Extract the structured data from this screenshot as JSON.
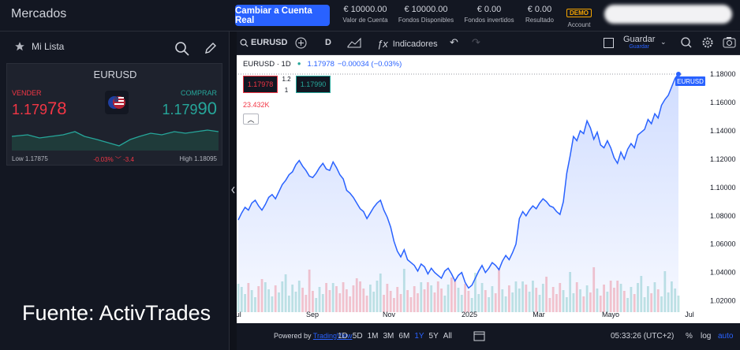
{
  "header": {
    "title": "Mercados",
    "cta_label": "Cambiar a Cuenta Real",
    "stats": [
      {
        "value": "€ 10000.00",
        "label": "Valor de Cuenta"
      },
      {
        "value": "€ 10000.00",
        "label": "Fondos Disponibles"
      },
      {
        "value": "€ 0.00",
        "label": "Fondos invertidos"
      },
      {
        "value": "€ 0.00",
        "label": "Resultado"
      }
    ],
    "account_badge": "DEMO",
    "account_label": "Account"
  },
  "sidebar": {
    "list_label": "Mi Lista",
    "card": {
      "symbol": "EURUSD",
      "sell_label": "VENDER",
      "sell_price_main": "1.179",
      "sell_price_big": "78",
      "buy_label": "COMPRAR",
      "buy_price_main": "1.179",
      "buy_price_big": "90",
      "low": "Low 1.17875",
      "change": "-0.03% ﹀ -3.4",
      "high": "High 1.18095"
    }
  },
  "chart_toolbar": {
    "symbol": "EURUSD",
    "interval": "D",
    "indicators_label": "Indicadores",
    "save_label": "Guardar",
    "save_sub": "Guardar"
  },
  "legend": {
    "title": "EURUSD · 1D",
    "price": "1.17978",
    "change": "−0.00034 (−0.03%)",
    "sell_box": "1.17978",
    "spread_top": "1.2",
    "spread_bottom": "1",
    "buy_box": "1.17990",
    "volume": "23.432K",
    "price_tag": "EURUSD"
  },
  "bottom_bar": {
    "powered": "Powered by",
    "powered_link": "TradingView",
    "ranges": [
      "1D",
      "5D",
      "1M",
      "3M",
      "6M",
      "1Y",
      "5Y",
      "All"
    ],
    "active_range": "1Y",
    "time": "05:33:26 (UTC+2)",
    "pct": "%",
    "log": "log",
    "auto": "auto"
  },
  "watermark": "Fuente: ActivTrades",
  "colors": {
    "accent": "#2962ff",
    "sell": "#f23645",
    "buy": "#26a69a",
    "line": "#2962ff"
  },
  "chart_data": {
    "type": "area",
    "title": "EURUSD · 1D",
    "x_ticks": [
      "Jul",
      "Sep",
      "Nov",
      "2025",
      "Mar",
      "Mayo",
      "Jul"
    ],
    "y_ticks": [
      1.02,
      1.04,
      1.06,
      1.08,
      1.1,
      1.12,
      1.14,
      1.16,
      1.18
    ],
    "ylim": [
      1.012,
      1.19
    ],
    "series": [
      {
        "values": [
          1.077,
          1.082,
          1.086,
          1.084,
          1.089,
          1.091,
          1.087,
          1.084,
          1.088,
          1.093,
          1.095,
          1.092,
          1.097,
          1.102,
          1.105,
          1.109,
          1.111,
          1.116,
          1.119,
          1.115,
          1.112,
          1.108,
          1.107,
          1.11,
          1.114,
          1.117,
          1.113,
          1.112,
          1.118,
          1.114,
          1.109,
          1.106,
          1.098,
          1.096,
          1.093,
          1.089,
          1.085,
          1.083,
          1.078,
          1.082,
          1.086,
          1.089,
          1.091,
          1.084,
          1.079,
          1.072,
          1.062,
          1.055,
          1.051,
          1.056,
          1.049,
          1.047,
          1.045,
          1.041,
          1.046,
          1.044,
          1.039,
          1.043,
          1.04,
          1.038,
          1.036,
          1.041,
          1.043,
          1.039,
          1.034,
          1.038,
          1.04,
          1.033,
          1.029,
          1.031,
          1.036,
          1.041,
          1.045,
          1.04,
          1.043,
          1.047,
          1.045,
          1.042,
          1.048,
          1.052,
          1.049,
          1.054,
          1.06,
          1.078,
          1.083,
          1.08,
          1.084,
          1.087,
          1.085,
          1.089,
          1.092,
          1.09,
          1.087,
          1.086,
          1.083,
          1.081,
          1.09,
          1.11,
          1.122,
          1.136,
          1.133,
          1.14,
          1.138,
          1.147,
          1.142,
          1.134,
          1.139,
          1.13,
          1.128,
          1.133,
          1.128,
          1.121,
          1.117,
          1.125,
          1.12,
          1.127,
          1.131,
          1.128,
          1.137,
          1.139,
          1.141,
          1.148,
          1.145,
          1.152,
          1.149,
          1.158,
          1.162,
          1.165,
          1.171,
          1.177,
          1.18
        ]
      }
    ]
  }
}
